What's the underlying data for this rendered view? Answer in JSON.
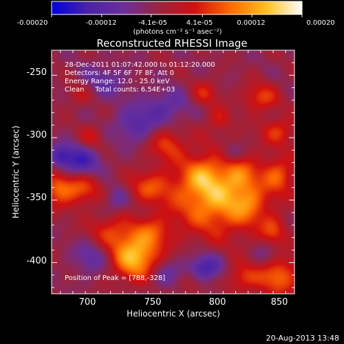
{
  "colorbar": {
    "tick_labels": [
      "-0.00020",
      "-0.00012",
      "-4.1e-05",
      "4.1e-05",
      "0.00012",
      "0.00020"
    ],
    "tick_values": [
      -0.0002,
      -0.00012,
      -4.1e-05,
      4.1e-05,
      0.00012,
      0.0002
    ],
    "units": "(photons cm⁻² s⁻¹ asec⁻²)",
    "range": [
      -0.0002,
      0.0002
    ],
    "colors": [
      "#0000e0",
      "#4a22a8",
      "#6a2f9a",
      "#9a2440",
      "#d01010",
      "#ff6a00",
      "#ffc020",
      "#ffffff"
    ]
  },
  "chart_data": {
    "type": "heatmap",
    "title": "Reconstructed RHESSI Image",
    "xlabel": "Heliocentric X (arcsec)",
    "ylabel": "Heliocentric Y (arcsec)",
    "xlim": [
      668,
      862
    ],
    "ylim": [
      -425,
      -230
    ],
    "x_ticks": [
      700,
      750,
      800,
      850
    ],
    "y_ticks": [
      -250,
      -300,
      -350,
      -400
    ],
    "annotations": [
      "28-Dec-2011 01:07:42.000 to 01:12:20.000",
      "Detectors: 4F 5F 6F 7F 8F, Att 0",
      "Energy Range: 12.0 - 25.0 keV",
      "Clean     Total counts: 6.54E+03"
    ],
    "peak_label": "Position of Peak = [788,-328]",
    "peak": [
      788,
      -328
    ],
    "blobs": [
      {
        "x": 800,
        "y": -345,
        "sx": 26,
        "sy": 22,
        "amp": 0.00017
      },
      {
        "x": 788,
        "y": -330,
        "sx": 9,
        "sy": 9,
        "amp": 5e-05
      },
      {
        "x": 826,
        "y": -355,
        "sx": 9,
        "sy": 10,
        "amp": 5e-05
      },
      {
        "x": 820,
        "y": -330,
        "sx": 8,
        "sy": 8,
        "amp": 4e-05
      },
      {
        "x": 735,
        "y": -395,
        "sx": 13,
        "sy": 13,
        "amp": 0.00018
      },
      {
        "x": 715,
        "y": -375,
        "sx": 13,
        "sy": 10,
        "amp": 8e-05
      },
      {
        "x": 750,
        "y": -375,
        "sx": 10,
        "sy": 9,
        "amp": 7e-05
      },
      {
        "x": 690,
        "y": -340,
        "sx": 12,
        "sy": 10,
        "amp": 0.00011
      },
      {
        "x": 672,
        "y": -340,
        "sx": 8,
        "sy": 10,
        "amp": 9e-05
      },
      {
        "x": 760,
        "y": -305,
        "sx": 10,
        "sy": 9,
        "amp": 8e-05
      },
      {
        "x": 745,
        "y": -340,
        "sx": 12,
        "sy": 9,
        "amp": 8e-05
      },
      {
        "x": 848,
        "y": -410,
        "sx": 12,
        "sy": 12,
        "amp": 0.00012
      },
      {
        "x": 820,
        "y": -412,
        "sx": 9,
        "sy": 8,
        "amp": 8e-05
      },
      {
        "x": 850,
        "y": -330,
        "sx": 9,
        "sy": 10,
        "amp": 9e-05
      },
      {
        "x": 850,
        "y": -295,
        "sx": 10,
        "sy": 8,
        "amp": 8e-05
      },
      {
        "x": 835,
        "y": -268,
        "sx": 10,
        "sy": 8,
        "amp": 9e-05
      },
      {
        "x": 790,
        "y": -265,
        "sx": 8,
        "sy": 7,
        "amp": 7e-05
      },
      {
        "x": 802,
        "y": -285,
        "sx": 7,
        "sy": 7,
        "amp": 6e-05
      },
      {
        "x": 845,
        "y": -375,
        "sx": 7,
        "sy": 8,
        "amp": 8e-05
      },
      {
        "x": 700,
        "y": -300,
        "sx": 7,
        "sy": 7,
        "amp": 6e-05
      },
      {
        "x": 780,
        "y": -415,
        "sx": 8,
        "sy": 7,
        "amp": 6e-05
      },
      {
        "x": 690,
        "y": -265,
        "sx": 8,
        "sy": 7,
        "amp": 5e-05
      },
      {
        "x": 690,
        "y": -320,
        "sx": 12,
        "sy": 10,
        "amp": -0.00012
      },
      {
        "x": 675,
        "y": -315,
        "sx": 6,
        "sy": 6,
        "amp": -8e-05
      },
      {
        "x": 735,
        "y": -290,
        "sx": 12,
        "sy": 10,
        "amp": -8e-05
      },
      {
        "x": 760,
        "y": -275,
        "sx": 14,
        "sy": 10,
        "amp": -7e-05
      },
      {
        "x": 710,
        "y": -255,
        "sx": 14,
        "sy": 10,
        "amp": -6e-05
      },
      {
        "x": 700,
        "y": -395,
        "sx": 10,
        "sy": 10,
        "amp": -7e-05
      },
      {
        "x": 790,
        "y": -405,
        "sx": 10,
        "sy": 8,
        "amp": -0.00012
      },
      {
        "x": 760,
        "y": -410,
        "sx": 10,
        "sy": 8,
        "amp": -6e-05
      },
      {
        "x": 812,
        "y": -312,
        "sx": 8,
        "sy": 6,
        "amp": -6e-05
      },
      {
        "x": 720,
        "y": -350,
        "sx": 8,
        "sy": 8,
        "amp": -6e-05
      },
      {
        "x": 840,
        "y": -395,
        "sx": 8,
        "sy": 8,
        "amp": -6e-05
      }
    ]
  },
  "footer": {
    "date": "20-Aug-2013 13:48"
  }
}
